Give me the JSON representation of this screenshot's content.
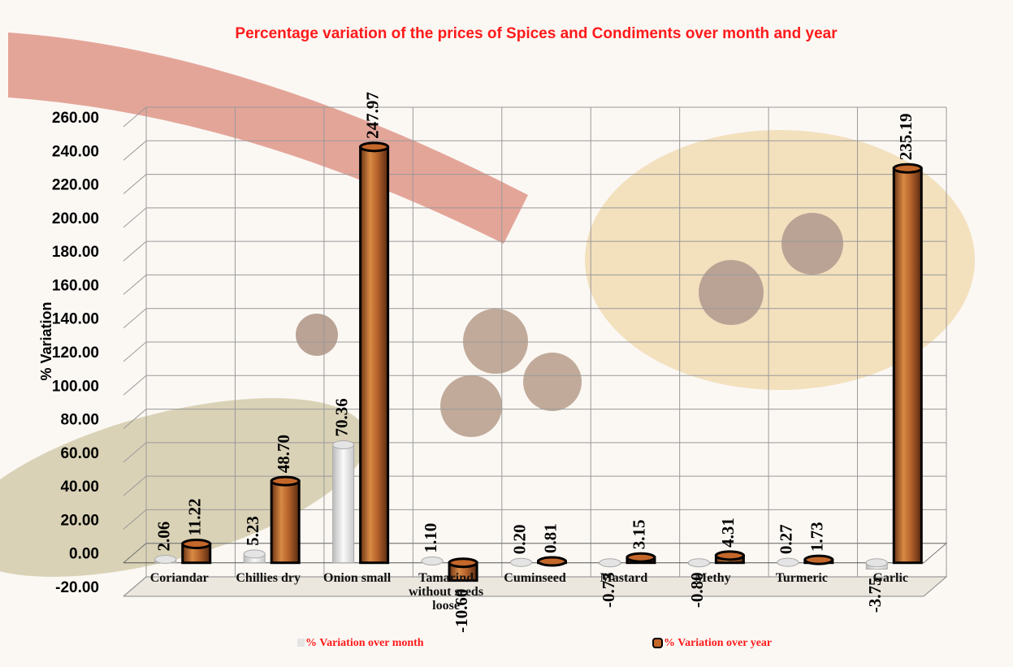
{
  "chart_data": {
    "type": "bar",
    "title": "Percentage variation of the prices of Spices and Condiments over month and year",
    "y_label": "% Variation",
    "categories": [
      "Coriandar",
      "Chillies dry",
      "Onion small",
      "Tamarind without seeds loose",
      "Cuminseed",
      "Mastard",
      "Methy",
      "Turmeric",
      "Garlic"
    ],
    "series": [
      {
        "name": "% Variation over month",
        "color": "#e4e4e4",
        "values": [
          2.06,
          5.23,
          70.36,
          1.1,
          0.2,
          -0.73,
          -0.8,
          0.27,
          -3.75
        ],
        "value_labels": [
          "2.06",
          "5.23",
          "70.36",
          "1.10",
          "0.20",
          "-0.73",
          "-0.80",
          "0.27",
          "-3.75"
        ]
      },
      {
        "name": "% Variation over year",
        "color": "#c4672a",
        "values": [
          11.22,
          48.7,
          247.97,
          -10.6,
          0.81,
          3.15,
          4.31,
          1.73,
          235.19
        ],
        "value_labels": [
          "11.22",
          "48.70",
          "247.97",
          "-10.60",
          "0.81",
          "3.15",
          "4.31",
          "1.73",
          "235.19"
        ]
      }
    ],
    "ylim": [
      -20,
      260
    ],
    "yticks": [
      {
        "value": -20,
        "label": "-20.00"
      },
      {
        "value": 0,
        "label": "0.00"
      },
      {
        "value": 20,
        "label": "20.00"
      },
      {
        "value": 40,
        "label": "40.00"
      },
      {
        "value": 60,
        "label": "60.00"
      },
      {
        "value": 80,
        "label": "80.00"
      },
      {
        "value": 100,
        "label": "100.00"
      },
      {
        "value": 120,
        "label": "120.00"
      },
      {
        "value": 140,
        "label": "140.00"
      },
      {
        "value": 160,
        "label": "160.00"
      },
      {
        "value": 180,
        "label": "180.00"
      },
      {
        "value": 200,
        "label": "200.00"
      },
      {
        "value": 220,
        "label": "220.00"
      },
      {
        "value": 240,
        "label": "240.00"
      },
      {
        "value": 260,
        "label": "260.00"
      }
    ],
    "grid": true
  }
}
